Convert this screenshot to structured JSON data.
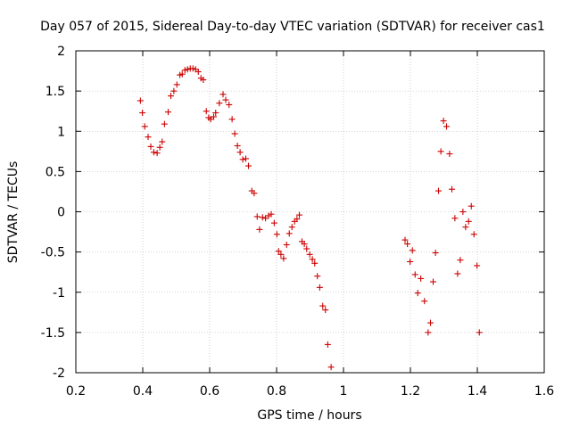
{
  "chart_data": {
    "type": "scatter",
    "title": "Day 057 of 2015, Sidereal Day-to-day VTEC variation (SDTVAR) for receiver cas1",
    "xlabel": "GPS time / hours",
    "ylabel": "SDTVAR / TECUs",
    "xlim": [
      0.2,
      1.6
    ],
    "ylim": [
      -2,
      2
    ],
    "xticks": [
      0.2,
      0.4,
      0.6,
      0.8,
      1.0,
      1.2,
      1.4,
      1.6
    ],
    "xtick_labels": [
      "0.2",
      "0.4",
      "0.6",
      "0.8",
      "1",
      "1.2",
      "1.4",
      "1.6"
    ],
    "yticks": [
      -2,
      -1.5,
      -1,
      -0.5,
      0,
      0.5,
      1,
      1.5,
      2
    ],
    "ytick_labels": [
      "-2",
      "-1.5",
      "-1",
      "-0.5",
      "0",
      "0.5",
      "1",
      "1.5",
      "2"
    ],
    "grid": true,
    "marker": "+",
    "color": "#cc0000",
    "series": [
      {
        "name": "SDTVAR",
        "points": [
          [
            0.393,
            1.38
          ],
          [
            0.399,
            1.23
          ],
          [
            0.406,
            1.06
          ],
          [
            0.416,
            0.93
          ],
          [
            0.424,
            0.81
          ],
          [
            0.433,
            0.74
          ],
          [
            0.443,
            0.73
          ],
          [
            0.451,
            0.8
          ],
          [
            0.458,
            0.87
          ],
          [
            0.465,
            1.09
          ],
          [
            0.476,
            1.24
          ],
          [
            0.484,
            1.44
          ],
          [
            0.493,
            1.5
          ],
          [
            0.502,
            1.58
          ],
          [
            0.511,
            1.7
          ],
          [
            0.518,
            1.71
          ],
          [
            0.526,
            1.76
          ],
          [
            0.534,
            1.77
          ],
          [
            0.542,
            1.78
          ],
          [
            0.55,
            1.78
          ],
          [
            0.558,
            1.77
          ],
          [
            0.566,
            1.74
          ],
          [
            0.574,
            1.66
          ],
          [
            0.581,
            1.64
          ],
          [
            0.59,
            1.25
          ],
          [
            0.597,
            1.17
          ],
          [
            0.603,
            1.15
          ],
          [
            0.612,
            1.18
          ],
          [
            0.618,
            1.23
          ],
          [
            0.629,
            1.35
          ],
          [
            0.64,
            1.46
          ],
          [
            0.648,
            1.39
          ],
          [
            0.658,
            1.33
          ],
          [
            0.667,
            1.15
          ],
          [
            0.675,
            0.97
          ],
          [
            0.683,
            0.82
          ],
          [
            0.691,
            0.74
          ],
          [
            0.699,
            0.65
          ],
          [
            0.708,
            0.66
          ],
          [
            0.716,
            0.57
          ],
          [
            0.726,
            0.26
          ],
          [
            0.733,
            0.23
          ],
          [
            0.742,
            -0.06
          ],
          [
            0.749,
            -0.22
          ],
          [
            0.758,
            -0.07
          ],
          [
            0.767,
            -0.08
          ],
          [
            0.776,
            -0.05
          ],
          [
            0.784,
            -0.03
          ],
          [
            0.793,
            -0.14
          ],
          [
            0.801,
            -0.28
          ],
          [
            0.806,
            -0.49
          ],
          [
            0.813,
            -0.53
          ],
          [
            0.821,
            -0.58
          ],
          [
            0.83,
            -0.41
          ],
          [
            0.838,
            -0.27
          ],
          [
            0.846,
            -0.19
          ],
          [
            0.854,
            -0.12
          ],
          [
            0.861,
            -0.09
          ],
          [
            0.868,
            -0.04
          ],
          [
            0.876,
            -0.37
          ],
          [
            0.883,
            -0.4
          ],
          [
            0.89,
            -0.46
          ],
          [
            0.899,
            -0.53
          ],
          [
            0.907,
            -0.59
          ],
          [
            0.914,
            -0.64
          ],
          [
            0.922,
            -0.8
          ],
          [
            0.929,
            -0.94
          ],
          [
            0.938,
            -1.17
          ],
          [
            0.946,
            -1.22
          ],
          [
            0.953,
            -1.65
          ],
          [
            0.963,
            -1.93
          ],
          [
            1.184,
            -0.35
          ],
          [
            1.191,
            -0.4
          ],
          [
            1.199,
            -0.62
          ],
          [
            1.206,
            -0.48
          ],
          [
            1.214,
            -0.78
          ],
          [
            1.222,
            -1.01
          ],
          [
            1.231,
            -0.83
          ],
          [
            1.242,
            -1.11
          ],
          [
            1.253,
            -1.5
          ],
          [
            1.26,
            -1.38
          ],
          [
            1.268,
            -0.87
          ],
          [
            1.275,
            -0.51
          ],
          [
            1.284,
            0.26
          ],
          [
            1.291,
            0.75
          ],
          [
            1.299,
            1.13
          ],
          [
            1.308,
            1.06
          ],
          [
            1.317,
            0.72
          ],
          [
            1.324,
            0.28
          ],
          [
            1.333,
            -0.08
          ],
          [
            1.341,
            -0.77
          ],
          [
            1.349,
            -0.6
          ],
          [
            1.357,
            0.0
          ],
          [
            1.365,
            -0.19
          ],
          [
            1.374,
            -0.12
          ],
          [
            1.382,
            0.07
          ],
          [
            1.39,
            -0.28
          ],
          [
            1.399,
            -0.67
          ],
          [
            1.406,
            -1.5
          ]
        ]
      }
    ]
  }
}
